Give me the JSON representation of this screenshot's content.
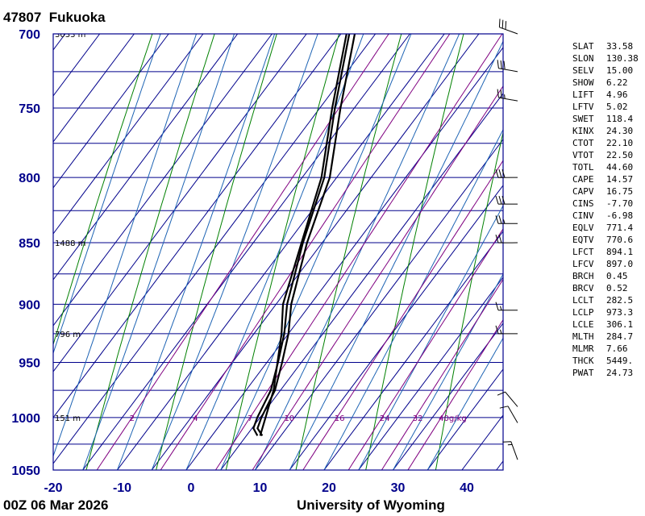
{
  "header": {
    "station_id": "47807",
    "station_name": "Fukuoka"
  },
  "footer": {
    "time": "00Z 06 Mar 2026",
    "institution": "University of Wyoming"
  },
  "colors": {
    "axes": "#00008b",
    "isotherm": "#00008b",
    "dry_adiabat": "#008000",
    "moist_adiabat": "#1e64b4",
    "mixing_ratio": "#800080",
    "profile": "#000000",
    "axis_label": "#00008b"
  },
  "chart_data": {
    "type": "skew-t",
    "pressure_ticks": [
      700,
      750,
      800,
      850,
      900,
      950,
      1000,
      1050
    ],
    "temperature_ticks": [
      -20,
      -10,
      0,
      10,
      20,
      30,
      40
    ],
    "xlim": [
      -20,
      45
    ],
    "ylim": [
      1050,
      700
    ],
    "height_labels": [
      {
        "p": 700,
        "label": "3033 m"
      },
      {
        "p": 850,
        "label": "1488 m"
      },
      {
        "p": 925,
        "label": "796 m"
      },
      {
        "p": 1000,
        "label": "151 m"
      }
    ],
    "mixing_ratio_labels": [
      "2",
      "4",
      "7",
      "10",
      "16",
      "24",
      "32",
      "40g/kg"
    ],
    "mixing_ratio_values": [
      2,
      4,
      7,
      10,
      16,
      24,
      32,
      40
    ],
    "series": [
      {
        "values": [
          [
            1017,
            12.3
          ],
          [
            1010,
            10.8
          ],
          [
            1000,
            10.2
          ],
          [
            975,
            9.2
          ],
          [
            950,
            7.2
          ],
          [
            925,
            5.0
          ],
          [
            900,
            2.2
          ],
          [
            850,
            -2.2
          ],
          [
            800,
            -6.0
          ],
          [
            750,
            -12.0
          ],
          [
            700,
            -18.0
          ]
        ]
      },
      {
        "values": [
          [
            1017,
            11.6
          ],
          [
            1010,
            10.2
          ],
          [
            1000,
            9.6
          ],
          [
            975,
            8.6
          ],
          [
            950,
            6.6
          ],
          [
            925,
            4.4
          ],
          [
            900,
            1.6
          ],
          [
            850,
            -2.8
          ],
          [
            800,
            -6.8
          ],
          [
            750,
            -12.8
          ],
          [
            700,
            -18.8
          ]
        ]
      },
      {
        "values": [
          [
            1017,
            12.0
          ],
          [
            975,
            9.0
          ],
          [
            925,
            4.0
          ],
          [
            900,
            1.0
          ],
          [
            850,
            -3.0
          ],
          [
            800,
            -7.2
          ],
          [
            750,
            -13.2
          ],
          [
            700,
            -19.2
          ]
        ]
      }
    ],
    "wind_barbs": [
      {
        "p": 700,
        "dir": 290,
        "spd": 30
      },
      {
        "p": 725,
        "dir": 280,
        "spd": 30
      },
      {
        "p": 745,
        "dir": 280,
        "spd": 25
      },
      {
        "p": 800,
        "dir": 270,
        "spd": 30
      },
      {
        "p": 820,
        "dir": 270,
        "spd": 30
      },
      {
        "p": 835,
        "dir": 270,
        "spd": 25
      },
      {
        "p": 850,
        "dir": 270,
        "spd": 20
      },
      {
        "p": 905,
        "dir": 270,
        "spd": 15
      },
      {
        "p": 925,
        "dir": 270,
        "spd": 15
      },
      {
        "p": 990,
        "dir": 320,
        "spd": 10
      },
      {
        "p": 1005,
        "dir": 330,
        "spd": 10
      },
      {
        "p": 1040,
        "dir": 340,
        "spd": 15
      }
    ]
  },
  "indices": [
    {
      "key": "SLAT",
      "value": "33.58"
    },
    {
      "key": "SLON",
      "value": "130.38"
    },
    {
      "key": "SELV",
      "value": "15.00"
    },
    {
      "key": "SHOW",
      "value": "6.22"
    },
    {
      "key": "LIFT",
      "value": "4.96"
    },
    {
      "key": "LFTV",
      "value": "5.02"
    },
    {
      "key": "SWET",
      "value": "118.4"
    },
    {
      "key": "KINX",
      "value": "24.30"
    },
    {
      "key": "CTOT",
      "value": "22.10"
    },
    {
      "key": "VTOT",
      "value": "22.50"
    },
    {
      "key": "TOTL",
      "value": "44.60"
    },
    {
      "key": "CAPE",
      "value": "14.57"
    },
    {
      "key": "CAPV",
      "value": "16.75"
    },
    {
      "key": "CINS",
      "value": "-7.70"
    },
    {
      "key": "CINV",
      "value": "-6.98"
    },
    {
      "key": "EQLV",
      "value": "771.4"
    },
    {
      "key": "EQTV",
      "value": "770.6"
    },
    {
      "key": "LFCT",
      "value": "894.1"
    },
    {
      "key": "LFCV",
      "value": "897.0"
    },
    {
      "key": "BRCH",
      "value": "0.45"
    },
    {
      "key": "BRCV",
      "value": "0.52"
    },
    {
      "key": "LCLT",
      "value": "282.5"
    },
    {
      "key": "LCLP",
      "value": "973.3"
    },
    {
      "key": "LCLE",
      "value": "306.1"
    },
    {
      "key": "MLTH",
      "value": "284.7"
    },
    {
      "key": "MLMR",
      "value": "7.66"
    },
    {
      "key": "THCK",
      "value": "5449."
    },
    {
      "key": "PWAT",
      "value": "24.73"
    }
  ]
}
